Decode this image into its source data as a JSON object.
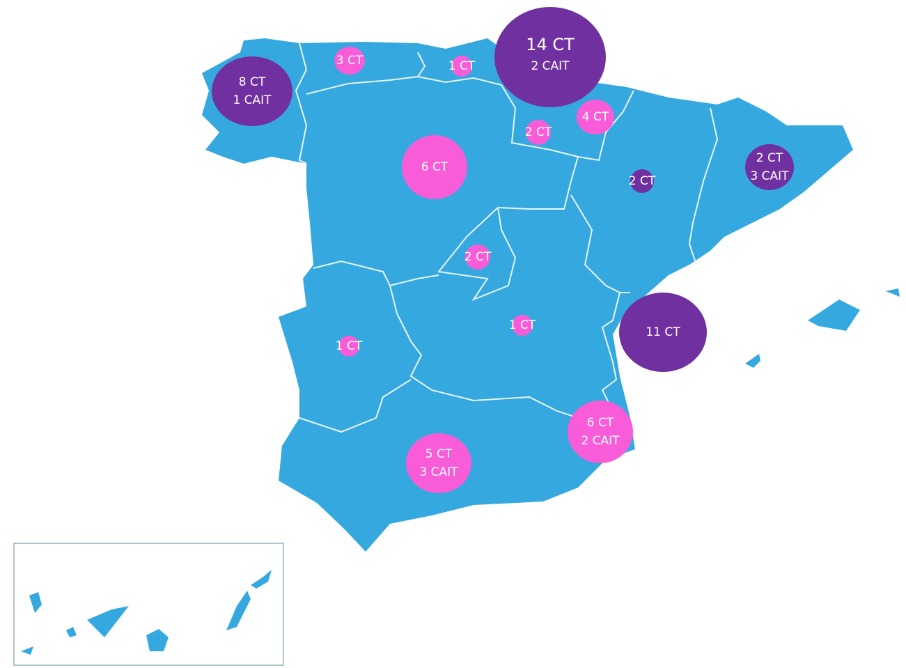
{
  "bubbles": [
    {
      "lines": [
        "8 CT",
        "1 CAIT"
      ],
      "color": "#7030a0"
    },
    {
      "lines": [
        "3 CT"
      ],
      "color": "#f85cd8"
    },
    {
      "lines": [
        "1 CT"
      ],
      "color": "#f85cd8"
    },
    {
      "lines": [
        "14 CT",
        "2 CAIT"
      ],
      "color": "#7030a0"
    },
    {
      "lines": [
        "4 CT"
      ],
      "color": "#f85cd8"
    },
    {
      "lines": [
        "2 CT"
      ],
      "color": "#f85cd8"
    },
    {
      "lines": [
        "6 CT"
      ],
      "color": "#f85cd8"
    },
    {
      "lines": [
        "2 CT"
      ],
      "color": "#7030a0"
    },
    {
      "lines": [
        "2 CT",
        "3 CAIT"
      ],
      "color": "#7030a0"
    },
    {
      "lines": [
        "2 CT"
      ],
      "color": "#f85cd8"
    },
    {
      "lines": [
        "1 CT"
      ],
      "color": "#f85cd8"
    },
    {
      "lines": [
        "1 CT"
      ],
      "color": "#f85cd8"
    },
    {
      "lines": [
        "11 CT"
      ],
      "color": "#7030a0"
    },
    {
      "lines": [
        "6 CT",
        "2 CAIT"
      ],
      "color": "#f85cd8"
    },
    {
      "lines": [
        "5 CT",
        "3 CAIT"
      ],
      "color": "#f85cd8"
    }
  ]
}
